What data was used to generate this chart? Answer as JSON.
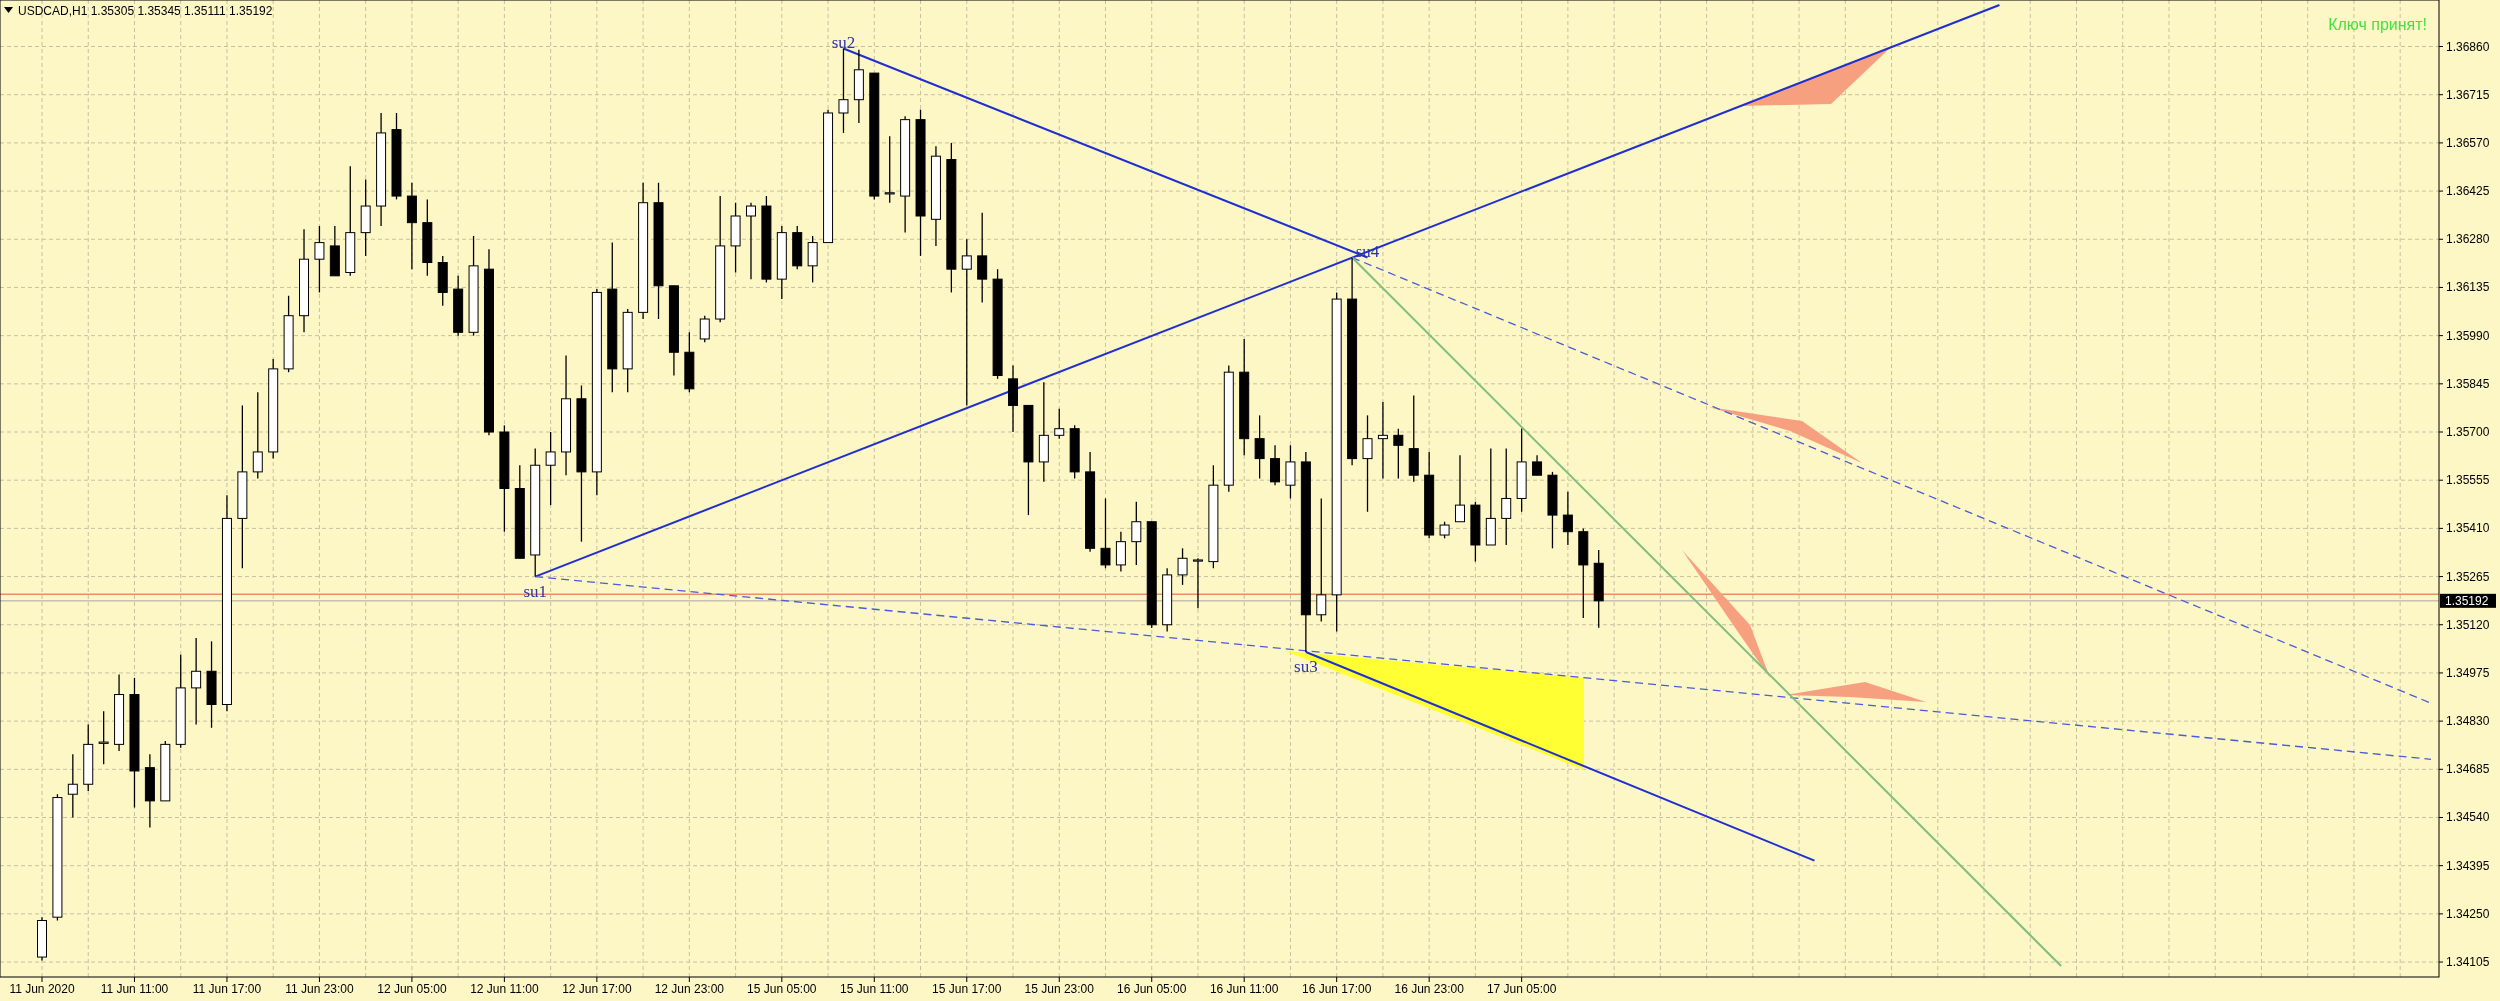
{
  "chart_data": {
    "type": "candlestick",
    "title": "USDCAD,H1  1.35305 1.35345 1.35111 1.35192",
    "categories": [
      "11 Jun 2020",
      null,
      null,
      null,
      null,
      null,
      "11 Jun 11:00",
      null,
      null,
      null,
      null,
      null,
      "11 Jun 17:00",
      null,
      null,
      null,
      null,
      null,
      "11 Jun 23:00",
      null,
      null,
      null,
      null,
      null,
      "12 Jun 05:00",
      null,
      null,
      null,
      null,
      null,
      "12 Jun 11:00",
      null,
      null,
      null,
      null,
      null,
      "12 Jun 17:00",
      null,
      null,
      null,
      null,
      null,
      "12 Jun 23:00",
      null,
      null,
      null,
      null,
      null,
      "15 Jun 05:00",
      null,
      null,
      null,
      null,
      null,
      "15 Jun 11:00",
      null,
      null,
      null,
      null,
      null,
      "15 Jun 17:00",
      null,
      null,
      null,
      null,
      null,
      "15 Jun 23:00",
      null,
      null,
      null,
      null,
      null,
      "16 Jun 05:00",
      null,
      null,
      null,
      null,
      null,
      "16 Jun 11:00",
      null,
      null,
      null,
      null,
      null,
      "16 Jun 17:00",
      null,
      null,
      null,
      null,
      null,
      "16 Jun 23:00",
      null,
      null,
      null,
      null,
      null,
      "17 Jun 05:00",
      null,
      null,
      null,
      null,
      null,
      null,
      null,
      null,
      null,
      null,
      null,
      null,
      null,
      null,
      null,
      null,
      null,
      null,
      null,
      null,
      null,
      null,
      null,
      null,
      null,
      null,
      null,
      null,
      null,
      null,
      null,
      null,
      null,
      null,
      null,
      null,
      null,
      null,
      null,
      null,
      null,
      null,
      null,
      null,
      null,
      null,
      null,
      null,
      null,
      null,
      null,
      null,
      null,
      null,
      null,
      null,
      null,
      null,
      null
    ],
    "ohlc": [
      [
        1.3412,
        1.3424,
        1.3411,
        1.3423
      ],
      [
        1.3424,
        1.3461,
        1.3423,
        1.346
      ],
      [
        1.3461,
        1.3473,
        1.3454,
        1.3464
      ],
      [
        1.3464,
        1.3482,
        1.3462,
        1.3476
      ],
      [
        1.34763,
        1.3486,
        1.347,
        1.34767
      ],
      [
        1.3476,
        1.3497,
        1.3474,
        1.3491
      ],
      [
        1.3491,
        1.3496,
        1.3457,
        1.3468
      ],
      [
        1.3469,
        1.3473,
        1.3451,
        1.3459
      ],
      [
        1.3459,
        1.3477,
        1.3459,
        1.3476
      ],
      [
        1.3476,
        1.3503,
        1.3475,
        1.3493
      ],
      [
        1.3493,
        1.3508,
        1.3482,
        1.3498
      ],
      [
        1.3498,
        1.3507,
        1.3481,
        1.3488
      ],
      [
        1.3488,
        1.3551,
        1.3486,
        1.3544
      ],
      [
        1.3544,
        1.3578,
        1.3529,
        1.3558
      ],
      [
        1.3558,
        1.3582,
        1.3556,
        1.3564
      ],
      [
        1.3564,
        1.3592,
        1.3562,
        1.3589
      ],
      [
        1.3589,
        1.3611,
        1.3588,
        1.3605
      ],
      [
        1.3605,
        1.3631,
        1.36,
        1.3622
      ],
      [
        1.3622,
        1.3632,
        1.3612,
        1.3627
      ],
      [
        1.3626,
        1.3632,
        1.3617,
        1.3617
      ],
      [
        1.3618,
        1.365,
        1.3617,
        1.363
      ],
      [
        1.363,
        1.3646,
        1.3623,
        1.3638
      ],
      [
        1.3638,
        1.3666,
        1.3632,
        1.366
      ],
      [
        1.3661,
        1.3666,
        1.364,
        1.3641
      ],
      [
        1.3641,
        1.3645,
        1.3619,
        1.3633
      ],
      [
        1.3633,
        1.364,
        1.3617,
        1.3621
      ],
      [
        1.3621,
        1.3623,
        1.3608,
        1.3612
      ],
      [
        1.3613,
        1.3617,
        1.3599,
        1.36
      ],
      [
        1.36,
        1.3629,
        1.3599,
        1.362
      ],
      [
        1.3619,
        1.3625,
        1.3569,
        1.357
      ],
      [
        1.357,
        1.3572,
        1.354,
        1.3553
      ],
      [
        1.3553,
        1.356,
        1.3532,
        1.3532
      ],
      [
        1.3533,
        1.3565,
        1.35265,
        1.356
      ],
      [
        1.356,
        1.357,
        1.3548,
        1.3564
      ],
      [
        1.3564,
        1.3593,
        1.3557,
        1.358
      ],
      [
        1.358,
        1.3584,
        1.3537,
        1.3558
      ],
      [
        1.3558,
        1.3613,
        1.3551,
        1.3612
      ],
      [
        1.3613,
        1.3627,
        1.3582,
        1.3589
      ],
      [
        1.3589,
        1.3607,
        1.3582,
        1.3606
      ],
      [
        1.3606,
        1.3645,
        1.3604,
        1.3639
      ],
      [
        1.3639,
        1.3645,
        1.3604,
        1.3614
      ],
      [
        1.3614,
        1.3614,
        1.3587,
        1.3594
      ],
      [
        1.3594,
        1.36,
        1.3582,
        1.3583
      ],
      [
        1.3598,
        1.3605,
        1.3597,
        1.3604
      ],
      [
        1.3604,
        1.3641,
        1.3603,
        1.3626
      ],
      [
        1.3626,
        1.3639,
        1.3618,
        1.3635
      ],
      [
        1.3635,
        1.3639,
        1.3616,
        1.3638
      ],
      [
        1.3638,
        1.3641,
        1.3615,
        1.3616
      ],
      [
        1.3616,
        1.3632,
        1.361,
        1.363
      ],
      [
        1.363,
        1.3632,
        1.3619,
        1.362
      ],
      [
        1.362,
        1.3629,
        1.3615,
        1.3627
      ],
      [
        1.3627,
        1.3667,
        1.3627,
        1.3666
      ],
      [
        1.3666,
        1.36854,
        1.366,
        1.367
      ],
      [
        1.367,
        1.3685,
        1.3663,
        1.3679
      ],
      [
        1.3678,
        1.3678,
        1.364,
        1.3641
      ],
      [
        1.3642,
        1.3659,
        1.3639,
        1.3642
      ],
      [
        1.3641,
        1.3665,
        1.363,
        1.3664
      ],
      [
        1.3664,
        1.3667,
        1.3623,
        1.3635
      ],
      [
        1.3634,
        1.3656,
        1.3626,
        1.3653
      ],
      [
        1.3652,
        1.3657,
        1.3612,
        1.3619
      ],
      [
        1.3619,
        1.3628,
        1.3578,
        1.3623
      ],
      [
        1.3623,
        1.3636,
        1.3609,
        1.3616
      ],
      [
        1.3616,
        1.3619,
        1.3586,
        1.3587
      ],
      [
        1.3586,
        1.359,
        1.357,
        1.3578
      ],
      [
        1.3578,
        1.3578,
        1.3545,
        1.3561
      ],
      [
        1.3561,
        1.3585,
        1.3555,
        1.3569
      ],
      [
        1.3569,
        1.3577,
        1.3568,
        1.3571
      ],
      [
        1.3571,
        1.3572,
        1.3556,
        1.3558
      ],
      [
        1.3558,
        1.3564,
        1.3534,
        1.3535
      ],
      [
        1.3535,
        1.355,
        1.3529,
        1.353
      ],
      [
        1.353,
        1.354,
        1.3528,
        1.3537
      ],
      [
        1.3537,
        1.3549,
        1.353,
        1.3543
      ],
      [
        1.3543,
        1.3543,
        1.3511,
        1.3512
      ],
      [
        1.3512,
        1.3529,
        1.351,
        1.3527
      ],
      [
        1.3527,
        1.3535,
        1.3524,
        1.3532
      ],
      [
        1.35313,
        1.3532,
        1.3517,
        1.35315
      ],
      [
        1.3531,
        1.356,
        1.3529,
        1.3554
      ],
      [
        1.3554,
        1.359,
        1.3552,
        1.3588
      ],
      [
        1.3588,
        1.3598,
        1.3563,
        1.3568
      ],
      [
        1.3568,
        1.3575,
        1.3556,
        1.3562
      ],
      [
        1.3562,
        1.3566,
        1.3554,
        1.3555
      ],
      [
        1.3554,
        1.3566,
        1.355,
        1.3561
      ],
      [
        1.3561,
        1.3564,
        1.35038,
        1.3515
      ],
      [
        1.3515,
        1.355,
        1.3513,
        1.3521
      ],
      [
        1.3521,
        1.3612,
        1.351,
        1.361
      ],
      [
        1.361,
        1.36225,
        1.356,
        1.3562
      ],
      [
        1.3562,
        1.3575,
        1.3546,
        1.3568
      ],
      [
        1.3568,
        1.3579,
        1.3556,
        1.3569
      ],
      [
        1.3569,
        1.3571,
        1.3556,
        1.3566
      ],
      [
        1.3565,
        1.3581,
        1.3555,
        1.3557
      ],
      [
        1.3557,
        1.3564,
        1.3538,
        1.3539
      ],
      [
        1.3539,
        1.3543,
        1.3538,
        1.3542
      ],
      [
        1.3543,
        1.3563,
        1.3543,
        1.3548
      ],
      [
        1.3548,
        1.3549,
        1.3531,
        1.3536
      ],
      [
        1.3536,
        1.3565,
        1.3536,
        1.3544
      ],
      [
        1.3544,
        1.3565,
        1.3536,
        1.355
      ],
      [
        1.355,
        1.3571,
        1.3546,
        1.3561
      ],
      [
        1.3561,
        1.3563,
        1.3557,
        1.3557
      ],
      [
        1.3557,
        1.3558,
        1.3535,
        1.3545
      ],
      [
        1.3545,
        1.3552,
        1.3536,
        1.354
      ],
      [
        1.354,
        1.3541,
        1.3514,
        1.353
      ],
      [
        1.35305,
        1.35345,
        1.35111,
        1.35192
      ],
      null,
      null,
      null,
      null,
      null,
      null,
      null,
      null,
      null,
      null,
      null,
      null,
      null,
      null,
      null,
      null,
      null,
      null,
      null,
      null,
      null,
      null,
      null,
      null,
      null,
      null,
      null,
      null,
      null,
      null,
      null,
      null,
      null,
      null,
      null,
      null,
      null,
      null,
      null,
      null,
      null,
      null,
      null,
      null,
      null,
      null,
      null,
      null,
      null,
      null,
      null,
      null,
      null,
      null
    ],
    "series": [
      {
        "type": "line",
        "color": "#1f2fd0",
        "line_style": "solid",
        "values": [
          null,
          null,
          null,
          null,
          null,
          null,
          null,
          null,
          null,
          null,
          null,
          null,
          null,
          null,
          null,
          null,
          null,
          null,
          null,
          null,
          null,
          null,
          null,
          null,
          null,
          null,
          null,
          null,
          null,
          null,
          null,
          null,
          1.35265,
          null,
          null,
          null,
          null,
          null,
          null,
          null,
          null,
          null,
          null,
          null,
          null,
          null,
          null,
          null,
          null,
          null,
          null,
          null,
          null,
          null,
          null,
          null,
          null,
          null,
          null,
          null,
          null,
          null,
          null,
          null,
          null,
          null,
          null,
          null,
          null,
          null,
          null,
          null,
          null,
          null,
          null,
          null,
          null,
          null,
          null,
          null,
          null,
          null,
          null,
          null,
          null,
          null,
          null,
          null,
          null,
          null,
          null,
          null,
          null,
          null,
          null,
          null,
          null,
          null,
          null,
          null,
          null,
          null,
          null,
          null,
          null,
          null,
          null,
          null,
          null,
          null,
          null,
          null,
          null,
          null,
          null,
          null,
          null,
          null,
          null,
          null,
          null,
          null,
          null,
          null,
          null,
          null,
          null,
          1.36985,
          null,
          null,
          null,
          null,
          null,
          null,
          null,
          null,
          null,
          null,
          null,
          null,
          null,
          null,
          null,
          null,
          null,
          null,
          null,
          null,
          null,
          null,
          null,
          null,
          null,
          null,
          null,
          null
        ]
      },
      {
        "type": "line",
        "color": "#1f2fd0",
        "line_style": "solid",
        "values": [
          null,
          null,
          null,
          null,
          null,
          null,
          null,
          null,
          null,
          null,
          null,
          null,
          null,
          null,
          null,
          null,
          null,
          null,
          null,
          null,
          null,
          null,
          null,
          null,
          null,
          null,
          null,
          null,
          null,
          null,
          null,
          null,
          null,
          null,
          null,
          null,
          null,
          null,
          null,
          null,
          null,
          null,
          null,
          null,
          null,
          null,
          null,
          null,
          null,
          null,
          null,
          null,
          1.36854,
          null,
          null,
          null,
          null,
          null,
          null,
          null,
          null,
          null,
          null,
          null,
          null,
          null,
          null,
          null,
          null,
          null,
          null,
          null,
          null,
          null,
          null,
          null,
          null,
          null,
          null,
          null,
          null,
          null,
          null,
          null,
          null,
          null,
          1.36225,
          null,
          null,
          null,
          null,
          null,
          null,
          null,
          null,
          null,
          null,
          null,
          null,
          null,
          null,
          null,
          null,
          null,
          null,
          null,
          null,
          null,
          null,
          null,
          null,
          null,
          null,
          null,
          null,
          null,
          null,
          null,
          null,
          null,
          null,
          null,
          null,
          null,
          null,
          null,
          null,
          null,
          null,
          null,
          null,
          null,
          null,
          null,
          null,
          null,
          null,
          null,
          null,
          null,
          null,
          null,
          null,
          null,
          null,
          null,
          null,
          null,
          null,
          null,
          null,
          null,
          null,
          null,
          null,
          null
        ]
      },
      {
        "type": "line",
        "color": "#1f2fd0",
        "line_style": "solid",
        "values": [
          null,
          null,
          null,
          null,
          null,
          null,
          null,
          null,
          null,
          null,
          null,
          null,
          null,
          null,
          null,
          null,
          null,
          null,
          null,
          null,
          null,
          null,
          null,
          null,
          null,
          null,
          null,
          null,
          null,
          null,
          null,
          null,
          null,
          null,
          null,
          null,
          null,
          null,
          null,
          null,
          null,
          null,
          null,
          null,
          null,
          null,
          null,
          null,
          null,
          null,
          null,
          null,
          null,
          null,
          null,
          null,
          null,
          null,
          null,
          null,
          null,
          null,
          null,
          null,
          null,
          null,
          null,
          null,
          null,
          null,
          null,
          null,
          null,
          null,
          null,
          null,
          null,
          null,
          null,
          null,
          null,
          null,
          1.35038,
          null,
          null,
          null,
          null,
          null,
          null,
          null,
          null,
          null,
          null,
          null,
          null,
          null,
          null,
          null,
          null,
          null,
          null,
          null,
          null,
          null,
          null,
          null,
          null,
          null,
          null,
          null,
          null,
          null,
          null,
          null,
          null,
          1.3441,
          null,
          null,
          null,
          null,
          null,
          null,
          null,
          null,
          null,
          null,
          null,
          null,
          null,
          null,
          null,
          null,
          null,
          null,
          null,
          null,
          null,
          null,
          null,
          null,
          null,
          null,
          null,
          null,
          null,
          null,
          null,
          null,
          null,
          null,
          null,
          null,
          null,
          null,
          null,
          null
        ]
      },
      {
        "type": "line",
        "color": "#4a5cd6",
        "line_style": "dashed",
        "values": [
          null,
          null,
          null,
          null,
          null,
          null,
          null,
          null,
          null,
          null,
          null,
          null,
          null,
          null,
          null,
          null,
          null,
          null,
          null,
          null,
          null,
          null,
          null,
          null,
          null,
          null,
          null,
          null,
          null,
          null,
          null,
          null,
          1.35265,
          null,
          null,
          null,
          null,
          null,
          null,
          null,
          null,
          null,
          null,
          null,
          null,
          null,
          null,
          null,
          null,
          null,
          null,
          null,
          null,
          null,
          null,
          null,
          null,
          null,
          null,
          null,
          null,
          null,
          null,
          null,
          null,
          null,
          null,
          null,
          null,
          null,
          null,
          null,
          null,
          null,
          null,
          null,
          null,
          null,
          null,
          null,
          null,
          null,
          null,
          null,
          null,
          null,
          null,
          null,
          null,
          null,
          null,
          null,
          null,
          null,
          null,
          null,
          null,
          null,
          null,
          null,
          null,
          null,
          null,
          null,
          null,
          null,
          null,
          null,
          null,
          null,
          null,
          null,
          null,
          null,
          null,
          null,
          null,
          null,
          null,
          null,
          null,
          null,
          null,
          null,
          null,
          null,
          null,
          null,
          null,
          null,
          null,
          null,
          null,
          null,
          null,
          null,
          null,
          null,
          null,
          null,
          null,
          null,
          null,
          null,
          null,
          null,
          null,
          null,
          null,
          null,
          null,
          null,
          null,
          null,
          null,
          1.34715
        ]
      },
      {
        "type": "line",
        "color": "#4a5cd6",
        "line_style": "dashed",
        "values": [
          null,
          null,
          null,
          null,
          null,
          null,
          null,
          null,
          null,
          null,
          null,
          null,
          null,
          null,
          null,
          null,
          null,
          null,
          null,
          null,
          null,
          null,
          null,
          null,
          null,
          null,
          null,
          null,
          null,
          null,
          null,
          null,
          null,
          null,
          null,
          null,
          null,
          null,
          null,
          null,
          null,
          null,
          null,
          null,
          null,
          null,
          null,
          null,
          null,
          null,
          null,
          null,
          null,
          null,
          null,
          null,
          null,
          null,
          null,
          null,
          null,
          null,
          null,
          null,
          null,
          null,
          null,
          null,
          null,
          null,
          null,
          null,
          null,
          null,
          null,
          null,
          null,
          null,
          null,
          null,
          null,
          null,
          null,
          null,
          null,
          1.36225,
          null,
          null,
          null,
          null,
          null,
          null,
          null,
          null,
          null,
          null,
          null,
          null,
          null,
          null,
          null,
          null,
          null,
          null,
          null,
          null,
          null,
          null,
          null,
          null,
          null,
          null,
          null,
          null,
          null,
          null,
          null,
          null,
          null,
          null,
          null,
          null,
          null,
          null,
          null,
          null,
          null,
          null,
          null,
          null,
          null,
          null,
          null,
          null,
          null,
          null,
          null,
          null,
          null,
          null,
          null,
          null,
          null,
          null,
          null,
          null,
          null,
          null,
          null,
          null,
          null,
          null,
          null,
          null,
          null,
          1.34884
        ]
      },
      {
        "type": "line",
        "color": "#7fbf7f",
        "line_style": "solid",
        "values": [
          null,
          null,
          null,
          null,
          null,
          null,
          null,
          null,
          null,
          null,
          null,
          null,
          null,
          null,
          null,
          null,
          null,
          null,
          null,
          null,
          null,
          null,
          null,
          null,
          null,
          null,
          null,
          null,
          null,
          null,
          null,
          null,
          null,
          null,
          null,
          null,
          null,
          null,
          null,
          null,
          null,
          null,
          null,
          null,
          null,
          null,
          null,
          null,
          null,
          null,
          null,
          null,
          null,
          null,
          null,
          null,
          null,
          null,
          null,
          null,
          null,
          null,
          null,
          null,
          null,
          null,
          null,
          null,
          null,
          null,
          null,
          null,
          null,
          null,
          null,
          null,
          null,
          null,
          null,
          null,
          null,
          null,
          null,
          null,
          null,
          1.36225,
          null,
          null,
          null,
          null,
          null,
          null,
          null,
          null,
          null,
          null,
          null,
          null,
          null,
          null,
          null,
          null,
          null,
          null,
          null,
          null,
          null,
          null,
          null,
          null,
          null,
          null,
          null,
          null,
          null,
          null,
          null,
          null,
          null,
          null,
          null,
          null,
          null,
          null,
          null,
          null,
          null,
          null,
          null,
          null,
          null,
          1.34093,
          null,
          null,
          null,
          null,
          null,
          null,
          null,
          null,
          null,
          null,
          null,
          null,
          null,
          null,
          null,
          null,
          null,
          null,
          null,
          null,
          null,
          null,
          null,
          null
        ]
      }
    ],
    "ylim": [
      1.3406,
      1.37
    ],
    "yticks": [
      {
        "value": 1.3686,
        "label": "1.36860"
      },
      {
        "value": 1.36715,
        "label": "1.36715"
      },
      {
        "value": 1.3657,
        "label": "1.36570"
      },
      {
        "value": 1.36425,
        "label": "1.36425"
      },
      {
        "value": 1.3628,
        "label": "1.36280"
      },
      {
        "value": 1.36135,
        "label": "1.36135"
      },
      {
        "value": 1.3599,
        "label": "1.35990"
      },
      {
        "value": 1.35845,
        "label": "1.35845"
      },
      {
        "value": 1.357,
        "label": "1.35700"
      },
      {
        "value": 1.35555,
        "label": "1.35555"
      },
      {
        "value": 1.3541,
        "label": "1.35410"
      },
      {
        "value": 1.35265,
        "label": "1.35265"
      },
      {
        "value": 1.3512,
        "label": "1.35120"
      },
      {
        "value": 1.34975,
        "label": "1.34975"
      },
      {
        "value": 1.3483,
        "label": "1.34830"
      },
      {
        "value": 1.34685,
        "label": "1.34685"
      },
      {
        "value": 1.3454,
        "label": "1.34540"
      },
      {
        "value": 1.34395,
        "label": "1.34395"
      },
      {
        "value": 1.3425,
        "label": "1.34250"
      },
      {
        "value": 1.34105,
        "label": "1.34105"
      }
    ],
    "ref_lines": [
      {
        "axis": "y",
        "value": 1.35212,
        "label": null,
        "color": "#e8906c",
        "line_style": "solid"
      },
      {
        "axis": "y",
        "value": 1.35192,
        "label": "1.35192",
        "color": "#c8c0b0",
        "line_style": "solid"
      }
    ],
    "annotations": [
      "su1",
      "su2",
      "su3",
      "su4",
      "Ключ принят!"
    ],
    "grid": true
  }
}
